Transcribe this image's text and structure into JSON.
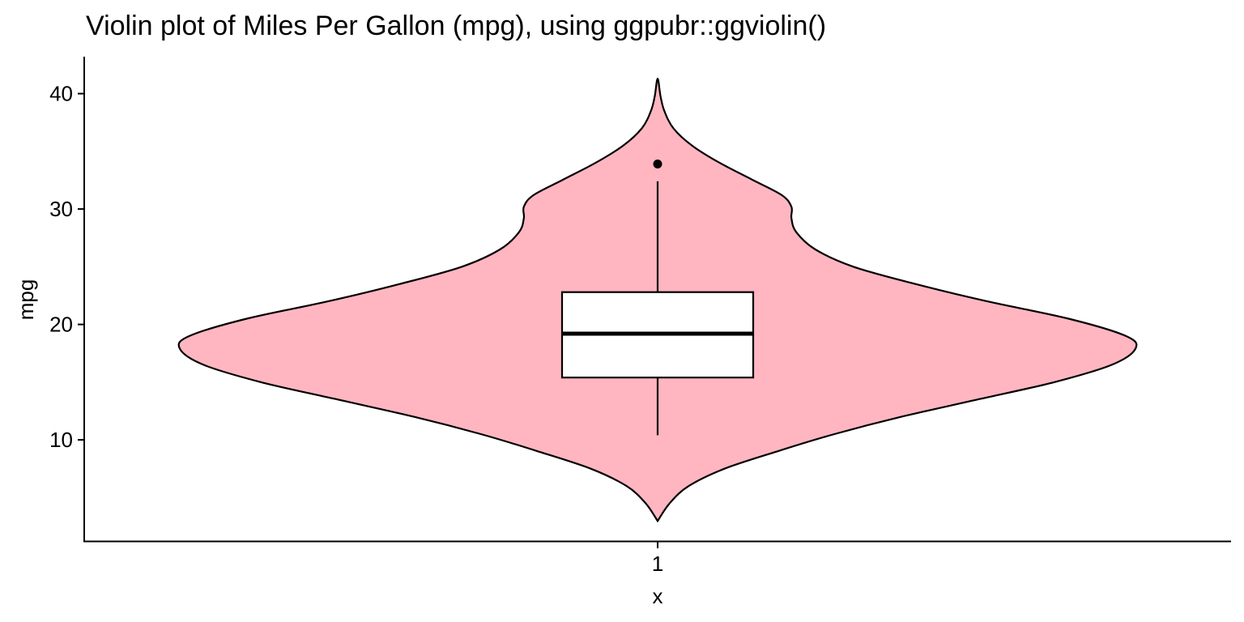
{
  "chart_data": {
    "type": "violin",
    "title": "Violin plot of Miles Per Gallon (mpg), using ggpubr::ggviolin()",
    "xlabel": "x",
    "ylabel": "mpg",
    "categories": [
      "1"
    ],
    "ylim": [
      1.2,
      43.2
    ],
    "yticks": [
      10,
      20,
      30,
      40
    ],
    "grid": false,
    "fill_color": "#ffb6c1",
    "outline_color": "#000000",
    "box": {
      "category": "1",
      "q1": 15.4,
      "median": 19.2,
      "q3": 22.8,
      "whisker_low": 10.4,
      "whisker_high": 32.4,
      "outliers": [
        33.9
      ]
    },
    "violin": {
      "category": "1",
      "y_min": 2.97,
      "y_max": 41.3,
      "density_profile": [
        {
          "y": 2.97,
          "w": 0.0
        },
        {
          "y": 4.5,
          "w": 0.025
        },
        {
          "y": 6.0,
          "w": 0.065
        },
        {
          "y": 7.5,
          "w": 0.14
        },
        {
          "y": 9.0,
          "w": 0.25
        },
        {
          "y": 10.5,
          "w": 0.37
        },
        {
          "y": 12.0,
          "w": 0.51
        },
        {
          "y": 13.5,
          "w": 0.67
        },
        {
          "y": 15.0,
          "w": 0.83
        },
        {
          "y": 16.5,
          "w": 0.95
        },
        {
          "y": 17.9,
          "w": 1.0
        },
        {
          "y": 19.0,
          "w": 0.98
        },
        {
          "y": 20.5,
          "w": 0.86
        },
        {
          "y": 22.0,
          "w": 0.69
        },
        {
          "y": 23.5,
          "w": 0.54
        },
        {
          "y": 25.0,
          "w": 0.41
        },
        {
          "y": 26.5,
          "w": 0.33
        },
        {
          "y": 28.0,
          "w": 0.29
        },
        {
          "y": 29.2,
          "w": 0.28
        },
        {
          "y": 30.2,
          "w": 0.28
        },
        {
          "y": 31.2,
          "w": 0.26
        },
        {
          "y": 32.5,
          "w": 0.2
        },
        {
          "y": 34.0,
          "w": 0.13
        },
        {
          "y": 35.5,
          "w": 0.072
        },
        {
          "y": 37.0,
          "w": 0.033
        },
        {
          "y": 38.5,
          "w": 0.014
        },
        {
          "y": 39.8,
          "w": 0.006
        },
        {
          "y": 41.3,
          "w": 0.0
        }
      ]
    }
  }
}
